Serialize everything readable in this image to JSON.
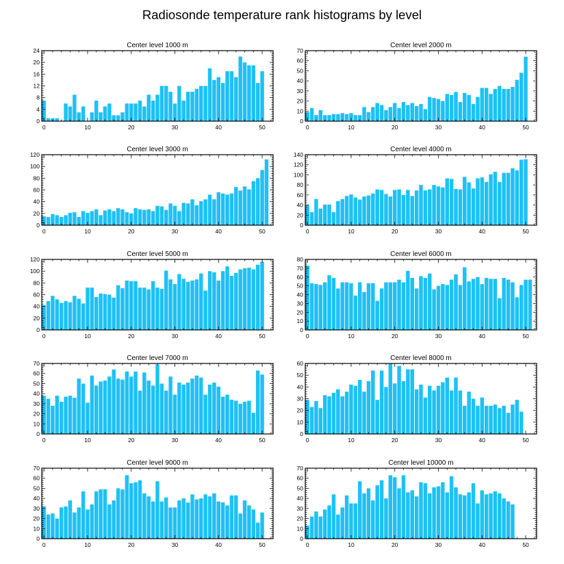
{
  "figure_title": "Radiosonde temperature rank histograms by level",
  "bar_color": "#1ec1f5",
  "chart_data": [
    {
      "type": "bar",
      "title": "Center level 1000 m",
      "xlabel": "",
      "ylabel": "",
      "xlim": [
        -0.5,
        52.5
      ],
      "ylim": [
        0,
        24
      ],
      "xticks": [
        0,
        10,
        20,
        30,
        40,
        50
      ],
      "yticks": [
        0,
        4,
        8,
        12,
        16,
        20,
        24
      ],
      "values": [
        7,
        1,
        1,
        1,
        0,
        6,
        5,
        9,
        3,
        5,
        0,
        3,
        7,
        3,
        5,
        6,
        2,
        2,
        3,
        6,
        6,
        6,
        7,
        5,
        9,
        7,
        9,
        12,
        12,
        10,
        6,
        12,
        7,
        10,
        10,
        11,
        12,
        12,
        18,
        14,
        15,
        13,
        17,
        17,
        15,
        22,
        20,
        19,
        19,
        13,
        17
      ]
    },
    {
      "type": "bar",
      "title": "Center level 2000 m",
      "xlabel": "",
      "ylabel": "",
      "xlim": [
        -0.5,
        52.5
      ],
      "ylim": [
        0,
        70
      ],
      "xticks": [
        0,
        10,
        20,
        30,
        40,
        50
      ],
      "yticks": [
        0,
        10,
        20,
        30,
        40,
        50,
        60,
        70
      ],
      "values": [
        9,
        13,
        6,
        11,
        6,
        6,
        7,
        7,
        8,
        7,
        8,
        6,
        6,
        14,
        9,
        14,
        18,
        16,
        11,
        14,
        18,
        13,
        19,
        16,
        18,
        15,
        17,
        12,
        24,
        23,
        22,
        20,
        27,
        26,
        29,
        19,
        28,
        26,
        17,
        24,
        33,
        33,
        27,
        32,
        35,
        32,
        32,
        34,
        41,
        48,
        64
      ]
    },
    {
      "type": "bar",
      "title": "Center level 3000 m",
      "xlabel": "",
      "ylabel": "",
      "xlim": [
        -0.5,
        52.5
      ],
      "ylim": [
        0,
        120
      ],
      "xticks": [
        0,
        10,
        20,
        30,
        40,
        50
      ],
      "yticks": [
        0,
        20,
        40,
        60,
        80,
        100,
        120
      ],
      "values": [
        15,
        14,
        19,
        17,
        14,
        17,
        21,
        22,
        14,
        24,
        21,
        24,
        27,
        17,
        25,
        27,
        24,
        29,
        27,
        22,
        20,
        29,
        27,
        26,
        27,
        24,
        33,
        32,
        26,
        37,
        33,
        24,
        38,
        37,
        44,
        34,
        41,
        44,
        52,
        44,
        56,
        54,
        52,
        54,
        65,
        59,
        66,
        61,
        75,
        80,
        94,
        112
      ]
    },
    {
      "type": "bar",
      "title": "Center level 4000 m",
      "xlabel": "",
      "ylabel": "",
      "xlim": [
        -0.5,
        52.5
      ],
      "ylim": [
        0,
        140
      ],
      "xticks": [
        0,
        10,
        20,
        30,
        40,
        50
      ],
      "yticks": [
        0,
        20,
        40,
        60,
        80,
        100,
        120,
        140
      ],
      "values": [
        40,
        26,
        52,
        33,
        41,
        41,
        26,
        48,
        52,
        58,
        61,
        55,
        51,
        57,
        59,
        63,
        71,
        70,
        62,
        57,
        70,
        71,
        60,
        70,
        58,
        69,
        80,
        69,
        71,
        80,
        77,
        75,
        93,
        92,
        72,
        71,
        96,
        85,
        73,
        93,
        95,
        86,
        101,
        106,
        86,
        104,
        104,
        113,
        109,
        130,
        131
      ]
    },
    {
      "type": "bar",
      "title": "Center level 5000 m",
      "xlabel": "",
      "ylabel": "",
      "xlim": [
        -0.5,
        52.5
      ],
      "ylim": [
        0,
        120
      ],
      "xticks": [
        0,
        10,
        20,
        30,
        40,
        50
      ],
      "yticks": [
        0,
        20,
        40,
        60,
        80,
        100,
        120
      ],
      "values": [
        42,
        49,
        58,
        52,
        46,
        49,
        47,
        58,
        53,
        45,
        72,
        72,
        56,
        62,
        61,
        60,
        55,
        76,
        71,
        84,
        83,
        83,
        72,
        72,
        69,
        83,
        72,
        70,
        101,
        86,
        78,
        95,
        87,
        82,
        84,
        86,
        96,
        67,
        100,
        98,
        84,
        100,
        108,
        92,
        97,
        103,
        105,
        106,
        103,
        111,
        116
      ]
    },
    {
      "type": "bar",
      "title": "Center level 6000 m",
      "xlabel": "",
      "ylabel": "",
      "xlim": [
        -0.5,
        52.5
      ],
      "ylim": [
        0,
        80
      ],
      "xticks": [
        0,
        10,
        20,
        30,
        40,
        50
      ],
      "yticks": [
        0,
        10,
        20,
        30,
        40,
        50,
        60,
        70,
        80
      ],
      "values": [
        73,
        53,
        52,
        51,
        54,
        62,
        59,
        47,
        54,
        54,
        53,
        39,
        54,
        43,
        53,
        53,
        33,
        47,
        54,
        54,
        54,
        57,
        54,
        67,
        59,
        47,
        61,
        59,
        64,
        46,
        50,
        52,
        51,
        57,
        63,
        51,
        71,
        55,
        58,
        60,
        52,
        59,
        58,
        58,
        36,
        59,
        57,
        54,
        37,
        51,
        57,
        57
      ]
    },
    {
      "type": "bar",
      "title": "Center level 7000 m",
      "xlabel": "",
      "ylabel": "",
      "xlim": [
        -0.5,
        52.5
      ],
      "ylim": [
        0,
        70
      ],
      "xticks": [
        0,
        10,
        20,
        30,
        40,
        50
      ],
      "yticks": [
        0,
        10,
        20,
        30,
        40,
        50,
        60,
        70
      ],
      "values": [
        38,
        35,
        28,
        38,
        32,
        37,
        38,
        36,
        55,
        50,
        31,
        58,
        48,
        52,
        53,
        57,
        64,
        55,
        54,
        62,
        57,
        62,
        43,
        61,
        53,
        48,
        69,
        50,
        43,
        57,
        39,
        51,
        49,
        51,
        55,
        58,
        56,
        39,
        49,
        51,
        47,
        37,
        39,
        34,
        33,
        30,
        32,
        33,
        21,
        63,
        59
      ]
    },
    {
      "type": "bar",
      "title": "Center level 8000 m",
      "xlabel": "",
      "ylabel": "",
      "xlim": [
        -0.5,
        52.5
      ],
      "ylim": [
        0,
        60
      ],
      "xticks": [
        0,
        10,
        20,
        30,
        40,
        50
      ],
      "yticks": [
        0,
        10,
        20,
        30,
        40,
        50,
        60
      ],
      "values": [
        29,
        23,
        28,
        22,
        33,
        32,
        35,
        38,
        32,
        36,
        42,
        41,
        46,
        36,
        45,
        54,
        29,
        54,
        40,
        60,
        43,
        58,
        45,
        55,
        55,
        38,
        42,
        31,
        41,
        37,
        41,
        44,
        48,
        37,
        48,
        37,
        24,
        36,
        30,
        24,
        31,
        24,
        24,
        25,
        22,
        24,
        18,
        25,
        29,
        19
      ]
    },
    {
      "type": "bar",
      "title": "Center level 9000 m",
      "xlabel": "",
      "ylabel": "",
      "xlim": [
        -0.5,
        52.5
      ],
      "ylim": [
        0,
        70
      ],
      "xticks": [
        0,
        10,
        20,
        30,
        40,
        50
      ],
      "yticks": [
        0,
        10,
        20,
        30,
        40,
        50,
        60,
        70
      ],
      "values": [
        32,
        24,
        25,
        20,
        31,
        32,
        38,
        26,
        31,
        47,
        29,
        34,
        47,
        49,
        49,
        34,
        38,
        50,
        49,
        63,
        55,
        56,
        58,
        45,
        42,
        37,
        57,
        37,
        41,
        31,
        31,
        38,
        40,
        36,
        44,
        39,
        40,
        44,
        42,
        45,
        37,
        36,
        33,
        43,
        43,
        25,
        38,
        33,
        29,
        16,
        26
      ]
    },
    {
      "type": "bar",
      "title": "Center level 10000 m",
      "xlabel": "",
      "ylabel": "",
      "xlim": [
        -0.5,
        52.5
      ],
      "ylim": [
        0,
        70
      ],
      "xticks": [
        0,
        10,
        20,
        30,
        40,
        50
      ],
      "yticks": [
        0,
        10,
        20,
        30,
        40,
        50,
        60,
        70
      ],
      "values": [
        13,
        22,
        27,
        22,
        29,
        33,
        44,
        24,
        31,
        43,
        35,
        35,
        57,
        45,
        50,
        38,
        53,
        58,
        40,
        63,
        61,
        50,
        63,
        46,
        48,
        42,
        56,
        55,
        45,
        51,
        52,
        56,
        46,
        62,
        51,
        44,
        43,
        46,
        55,
        35,
        48,
        44,
        45,
        47,
        45,
        40,
        37,
        34
      ]
    }
  ]
}
